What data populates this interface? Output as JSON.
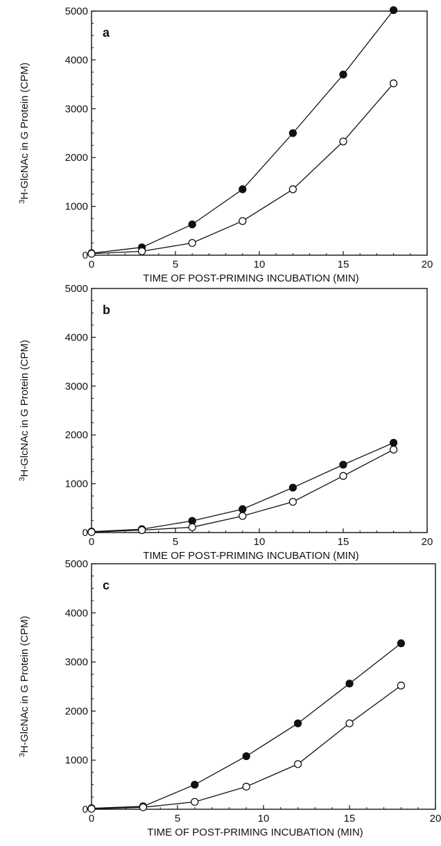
{
  "chart_data": [
    {
      "type": "line",
      "panel": "a",
      "xlabel": "TIME OF POST-PRIMING INCUBATION (MIN)",
      "ylabel": "3H-GlcNAc in G Protein (CPM)",
      "xlim": [
        0,
        20
      ],
      "ylim": [
        0,
        5000
      ],
      "xticks": [
        "0",
        "5",
        "10",
        "15",
        "20"
      ],
      "yticks": [
        "0",
        "1000",
        "2000",
        "3000",
        "4000",
        "5000"
      ],
      "grid": false,
      "series": [
        {
          "marker": "filled-circle",
          "x": [
            0,
            3,
            6,
            9,
            12,
            15,
            18
          ],
          "values": [
            40,
            160,
            630,
            1350,
            2500,
            3700,
            5020
          ]
        },
        {
          "marker": "open-circle",
          "x": [
            0,
            3,
            6,
            9,
            12,
            15,
            18
          ],
          "values": [
            30,
            80,
            250,
            700,
            1350,
            2330,
            3520
          ]
        }
      ]
    },
    {
      "type": "line",
      "panel": "b",
      "xlabel": "TIME OF POST-PRIMING INCUBATION (MIN)",
      "ylabel": "3H-GlcNAc in G Protein (CPM)",
      "xlim": [
        0,
        20
      ],
      "ylim": [
        0,
        5000
      ],
      "xticks": [
        "0",
        "5",
        "10",
        "15",
        "20"
      ],
      "yticks": [
        "0",
        "1000",
        "2000",
        "3000",
        "4000",
        "5000"
      ],
      "grid": false,
      "series": [
        {
          "marker": "filled-circle",
          "x": [
            0,
            3,
            6,
            9,
            12,
            15,
            18
          ],
          "values": [
            20,
            70,
            240,
            480,
            920,
            1390,
            1840
          ]
        },
        {
          "marker": "open-circle",
          "x": [
            0,
            3,
            6,
            9,
            12,
            15,
            18
          ],
          "values": [
            10,
            50,
            110,
            340,
            630,
            1160,
            1700
          ]
        }
      ]
    },
    {
      "type": "line",
      "panel": "c",
      "xlabel": "TIME OF POST-PRIMING INCUBATION (MIN)",
      "ylabel": "3H-GlcNAc in G Protein (CPM)",
      "xlim": [
        0,
        20
      ],
      "ylim": [
        0,
        5000
      ],
      "xticks": [
        "0",
        "5",
        "10",
        "15",
        "20"
      ],
      "yticks": [
        "0",
        "1000",
        "2000",
        "3000",
        "4000",
        "5000"
      ],
      "grid": false,
      "series": [
        {
          "marker": "filled-circle",
          "x": [
            0,
            3,
            6,
            9,
            12,
            15,
            18
          ],
          "values": [
            20,
            60,
            500,
            1080,
            1750,
            2560,
            3380
          ]
        },
        {
          "marker": "open-circle",
          "x": [
            0,
            3,
            6,
            9,
            12,
            15,
            18
          ],
          "values": [
            10,
            40,
            150,
            460,
            920,
            1750,
            2520
          ]
        }
      ]
    }
  ],
  "colors": {
    "ink": "#111111",
    "background": "#ffffff"
  }
}
